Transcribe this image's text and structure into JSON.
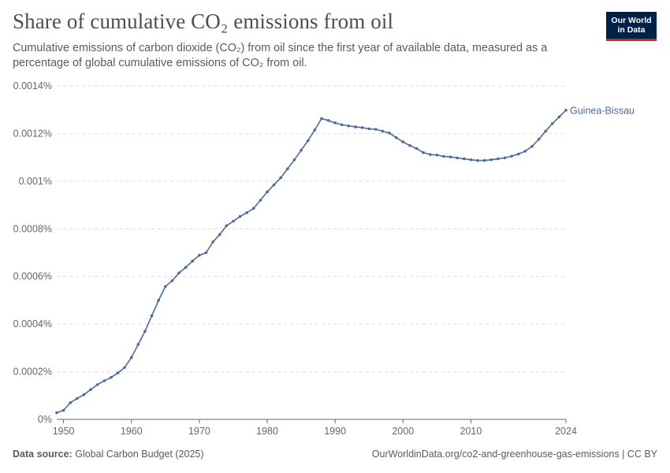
{
  "header": {
    "title": "Share of cumulative CO₂ emissions from oil",
    "subtitle": "Cumulative emissions of carbon dioxide (CO₂) from oil since the first year of available data, measured as a percentage of global cumulative emissions of CO₂ from oil."
  },
  "logo": {
    "line1": "Our World",
    "line2": "in Data"
  },
  "footer": {
    "source_label": "Data source:",
    "source_text": "Global Carbon Budget (2025)",
    "url_license": "OurWorldinData.org/co2-and-greenhouse-gas-emissions | CC BY"
  },
  "colors": {
    "series": "#4c6a9c",
    "grid": "#dddddd",
    "axis": "#666666",
    "tick_text": "#666666"
  },
  "chart_data": {
    "type": "line",
    "title": "Share of cumulative CO₂ emissions from oil",
    "xlabel": "",
    "ylabel": "",
    "xlim": [
      1949,
      2024
    ],
    "ylim": [
      0,
      0.0014
    ],
    "grid": "horizontal-dashed",
    "y_ticks": [
      0,
      0.0002,
      0.0004,
      0.0006,
      0.0008,
      0.001,
      0.0012,
      0.0014
    ],
    "y_tick_labels": [
      "0%",
      "0.0002%",
      "0.0004%",
      "0.0006%",
      "0.0008%",
      "0.001%",
      "0.0012%",
      "0.0014%"
    ],
    "x_ticks": [
      1950,
      1960,
      1970,
      1980,
      1990,
      2000,
      2010,
      2024
    ],
    "x_tick_labels": [
      "1950",
      "1960",
      "1970",
      "1980",
      "1990",
      "2000",
      "2010",
      "2024"
    ],
    "series": [
      {
        "name": "Guinea-Bissau",
        "x": [
          1949,
          1950,
          1951,
          1952,
          1953,
          1954,
          1955,
          1956,
          1957,
          1958,
          1959,
          1960,
          1961,
          1962,
          1963,
          1964,
          1965,
          1966,
          1967,
          1968,
          1969,
          1970,
          1971,
          1972,
          1973,
          1974,
          1975,
          1976,
          1977,
          1978,
          1979,
          1980,
          1981,
          1982,
          1983,
          1984,
          1985,
          1986,
          1987,
          1988,
          1989,
          1990,
          1991,
          1992,
          1993,
          1994,
          1995,
          1996,
          1997,
          1998,
          1999,
          2000,
          2001,
          2002,
          2003,
          2004,
          2005,
          2006,
          2007,
          2008,
          2009,
          2010,
          2011,
          2012,
          2013,
          2014,
          2015,
          2016,
          2017,
          2018,
          2019,
          2020,
          2021,
          2022,
          2023,
          2024
        ],
        "values": [
          2.8e-05,
          3.8e-05,
          7e-05,
          8.8e-05,
          0.000104,
          0.000125,
          0.000146,
          0.000162,
          0.000176,
          0.000195,
          0.000218,
          0.00026,
          0.000315,
          0.00037,
          0.000435,
          0.0005,
          0.000558,
          0.000582,
          0.000615,
          0.000638,
          0.000665,
          0.000689,
          0.0007,
          0.000745,
          0.000776,
          0.000813,
          0.000832,
          0.000852,
          0.000868,
          0.000886,
          0.00092,
          0.000955,
          0.000985,
          0.001015,
          0.001052,
          0.00109,
          0.00113,
          0.00117,
          0.001215,
          0.001263,
          0.001255,
          0.001245,
          0.001237,
          0.001232,
          0.001228,
          0.001225,
          0.00122,
          0.001218,
          0.00121,
          0.001202,
          0.001183,
          0.001165,
          0.00115,
          0.001137,
          0.00112,
          0.001112,
          0.00111,
          0.001104,
          0.001102,
          0.001098,
          0.001094,
          0.00109,
          0.001087,
          0.001087,
          0.00109,
          0.001094,
          0.001098,
          0.001105,
          0.001114,
          0.001126,
          0.001146,
          0.001176,
          0.00121,
          0.001242,
          0.00127,
          0.001298
        ]
      }
    ]
  }
}
